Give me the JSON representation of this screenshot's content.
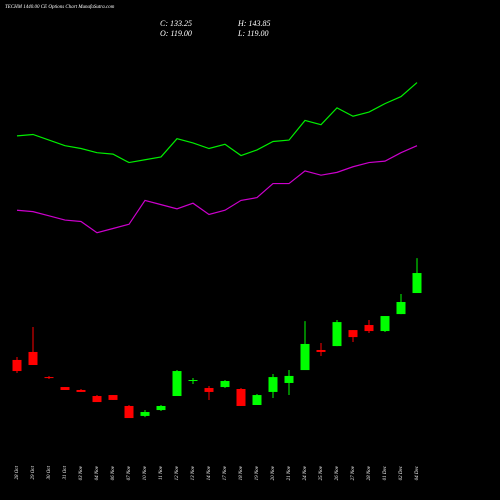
{
  "chart_data": {
    "type": "candlestick",
    "title": "TECHM 1440.00 CE Options Chart MunafaSutra.com",
    "readout": [
      "C: 133.25",
      "H: 143.85",
      "O: 119.00",
      "L: 119.00"
    ],
    "categories": [
      "28 Oct",
      "29 Oct",
      "30 Oct",
      "31 Oct",
      "03 Nov",
      "04 Nov",
      "06 Nov",
      "07 Nov",
      "10 Nov",
      "11 Nov",
      "12 Nov",
      "13 Nov",
      "14 Nov",
      "17 Nov",
      "18 Nov",
      "19 Nov",
      "20 Nov",
      "21 Nov",
      "24 Nov",
      "25 Nov",
      "26 Nov",
      "27 Nov",
      "28 Nov",
      "01 Dec",
      "02 Dec",
      "04 Dec"
    ],
    "open": [
      71.3,
      77.0,
      59.1,
      52.0,
      49.9,
      45.6,
      46.3,
      38.5,
      31.4,
      35.6,
      45.6,
      56.3,
      51.3,
      52.0,
      50.6,
      39.2,
      48.5,
      54.9,
      64.1,
      78.4,
      81.2,
      92.6,
      96.2,
      91.9,
      104.0,
      119.0
    ],
    "high": [
      73.4,
      94.8,
      59.9,
      52.0,
      50.6,
      46.3,
      46.3,
      39.2,
      35.6,
      39.2,
      64.1,
      58.4,
      52.7,
      57.0,
      51.3,
      47.0,
      61.3,
      64.1,
      99.0,
      83.4,
      99.8,
      92.6,
      99.8,
      102.6,
      118.3,
      143.85
    ],
    "low": [
      62.0,
      67.7,
      57.7,
      49.9,
      48.5,
      41.3,
      42.8,
      29.9,
      30.6,
      34.9,
      45.6,
      54.2,
      42.8,
      51.3,
      38.5,
      39.2,
      44.2,
      46.3,
      64.1,
      74.1,
      81.2,
      84.1,
      90.5,
      91.2,
      104.0,
      119.0
    ],
    "close": [
      63.4,
      67.7,
      58.4,
      49.9,
      48.5,
      41.3,
      42.8,
      29.9,
      34.2,
      38.5,
      63.4,
      57.0,
      48.5,
      56.3,
      38.5,
      46.3,
      59.1,
      59.9,
      82.7,
      77.0,
      98.3,
      87.6,
      91.9,
      102.6,
      112.6,
      133.25
    ],
    "up_color": "#00ff00",
    "down_color": "#ff0000",
    "lines": [
      {
        "color": "#00ee00",
        "values": [
          231,
          232,
          228,
          224,
          222,
          219,
          218,
          212,
          214,
          216,
          229,
          226,
          222,
          225,
          217,
          221,
          227,
          228,
          242,
          239,
          251,
          245,
          248,
          254,
          259,
          269
        ]
      },
      {
        "color": "#cc00cc",
        "values": [
          178,
          177,
          174,
          171,
          170,
          162,
          165,
          168,
          185,
          182,
          179,
          183,
          175,
          178,
          185,
          187,
          197,
          197,
          206,
          203,
          205,
          209,
          212,
          213,
          219,
          224
        ]
      }
    ],
    "ylim": [
      0,
      320
    ]
  }
}
